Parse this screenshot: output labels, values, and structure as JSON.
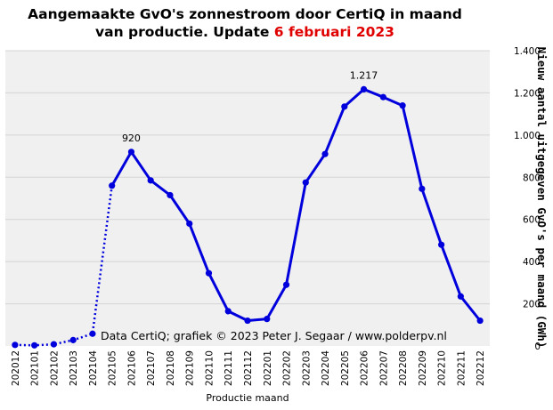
{
  "chart_data": {
    "type": "line",
    "title_main": "Aangemaakte GvO's zonnestroom door CertiQ in maand",
    "title_line2": "van productie. Update ",
    "title_highlight": "6 februari 2023",
    "xlabel": "Productie maand",
    "ylabel": "Nieuw aantal uitgegeven GvO's per maand (GWh)",
    "credit": "Data CertiQ; grafiek © 2023 Peter J. Segaar / www.polderpv.nl",
    "ylim": [
      0,
      1400
    ],
    "yticks": [
      0,
      200,
      400,
      600,
      800,
      1000,
      1200,
      1400
    ],
    "ytick_labels": [
      "0",
      "200",
      "400",
      "600",
      "800",
      "1.000",
      "1.200",
      "1.400"
    ],
    "y_axis_side": "right",
    "grid": true,
    "categories": [
      "202012",
      "202101",
      "202102",
      "202103",
      "202104",
      "202105",
      "202106",
      "202107",
      "202108",
      "202109",
      "202110",
      "202111",
      "202112",
      "202201",
      "202202",
      "202203",
      "202204",
      "202205",
      "202206",
      "202207",
      "202208",
      "202209",
      "202210",
      "202211",
      "202212"
    ],
    "series": [
      {
        "values": [
          5,
          3,
          8,
          28,
          58,
          760,
          920,
          785,
          715,
          580,
          345,
          165,
          120,
          128,
          290,
          775,
          910,
          1135,
          1217,
          1180,
          1140,
          745,
          480,
          235,
          120
        ],
        "dotted_until_index": 5,
        "color": "#0000dd"
      }
    ],
    "annotations": [
      {
        "index": 6,
        "text": "920"
      },
      {
        "index": 18,
        "text": "1.217"
      }
    ]
  }
}
